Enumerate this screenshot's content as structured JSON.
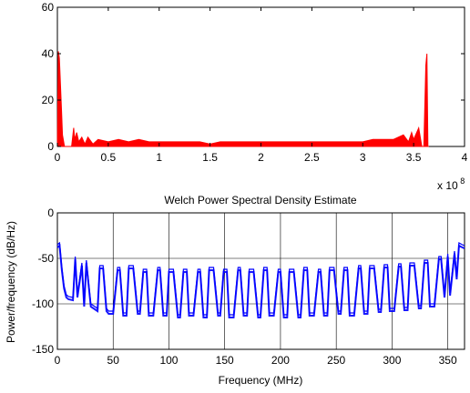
{
  "chart_data": [
    {
      "type": "area",
      "title": "",
      "xlabel": "",
      "ylabel": "",
      "x_multiplier_label": "x 10",
      "x_multiplier_exp": "8",
      "xlim": [
        0,
        4
      ],
      "ylim": [
        0,
        60
      ],
      "xticks": [
        "0",
        "0.5",
        "1",
        "1.5",
        "2",
        "2.5",
        "3",
        "3.5",
        "4"
      ],
      "yticks": [
        "0",
        "20",
        "40",
        "60"
      ],
      "grid": false,
      "color": "#ff0000",
      "series": [
        {
          "x": [
            0,
            0.01,
            0.02,
            0.04,
            0.05,
            0.07,
            0.1,
            0.14,
            0.16,
            0.17,
            0.19,
            0.21,
            0.24,
            0.27,
            0.3,
            0.35,
            0.4,
            0.5,
            0.6,
            0.7,
            0.8,
            0.9,
            1.0,
            1.1,
            1.2,
            1.3,
            1.4,
            1.5,
            1.6,
            1.7,
            1.8,
            1.9,
            2.0,
            2.1,
            2.2,
            2.3,
            2.4,
            2.5,
            2.6,
            2.7,
            2.8,
            2.9,
            3.0,
            3.1,
            3.2,
            3.3,
            3.4,
            3.45,
            3.48,
            3.5,
            3.55,
            3.58,
            3.6,
            3.62,
            3.63,
            3.64,
            3.65
          ],
          "y": [
            0,
            41,
            38,
            16,
            5,
            0,
            0,
            0,
            8,
            3,
            6,
            2,
            4,
            1,
            4,
            1,
            3,
            2,
            3,
            2,
            3,
            2,
            2,
            2,
            2,
            2,
            2,
            1,
            2,
            2,
            2,
            2,
            2,
            2,
            2,
            2,
            2,
            2,
            2,
            2,
            2,
            2,
            2,
            3,
            3,
            3,
            5,
            2,
            6,
            3,
            8,
            0,
            0,
            35,
            40,
            0,
            0
          ]
        }
      ]
    },
    {
      "type": "line",
      "title": "Welch Power Spectral Density Estimate",
      "xlabel": "Frequency (MHz)",
      "ylabel": "Power/frequency (dB/Hz)",
      "xlim": [
        0,
        365
      ],
      "ylim": [
        -150,
        0
      ],
      "xticks": [
        "0",
        "50",
        "100",
        "150",
        "200",
        "250",
        "300",
        "350"
      ],
      "yticks": [
        "0",
        "-50",
        "-100",
        "-150"
      ],
      "grid": true,
      "color": "#0000ff",
      "series": [
        {
          "x": [
            0,
            2,
            4,
            6,
            8,
            10,
            14,
            16,
            18,
            22,
            24,
            26,
            30,
            36,
            38,
            41,
            44,
            46,
            50,
            54,
            56,
            59,
            62,
            64,
            68,
            72,
            74,
            77,
            80,
            82,
            86,
            90,
            92,
            95,
            98,
            100,
            104,
            108,
            110,
            113,
            116,
            118,
            122,
            126,
            128,
            131,
            134,
            136,
            140,
            144,
            146,
            149,
            152,
            154,
            158,
            162,
            164,
            167,
            170,
            172,
            176,
            180,
            182,
            185,
            188,
            190,
            194,
            198,
            200,
            203,
            206,
            208,
            212,
            216,
            218,
            221,
            224,
            226,
            230,
            234,
            236,
            239,
            242,
            244,
            248,
            252,
            254,
            257,
            260,
            262,
            266,
            270,
            272,
            275,
            278,
            280,
            284,
            288,
            290,
            293,
            296,
            298,
            302,
            306,
            308,
            311,
            314,
            316,
            320,
            324,
            326,
            329,
            332,
            334,
            338,
            342,
            344,
            347,
            350,
            352,
            356,
            358,
            360,
            363,
            365
          ],
          "y": [
            -35,
            -33,
            -60,
            -80,
            -90,
            -92,
            -93,
            -48,
            -90,
            -55,
            -100,
            -52,
            -100,
            -105,
            -58,
            -58,
            -105,
            -108,
            -108,
            -60,
            -60,
            -110,
            -110,
            -58,
            -58,
            -108,
            -108,
            -62,
            -62,
            -110,
            -110,
            -60,
            -60,
            -110,
            -110,
            -62,
            -62,
            -112,
            -112,
            -62,
            -62,
            -110,
            -110,
            -62,
            -62,
            -112,
            -112,
            -60,
            -60,
            -110,
            -110,
            -62,
            -62,
            -112,
            -112,
            -60,
            -60,
            -110,
            -110,
            -62,
            -62,
            -112,
            -112,
            -60,
            -60,
            -110,
            -110,
            -62,
            -62,
            -112,
            -112,
            -62,
            -62,
            -112,
            -112,
            -60,
            -60,
            -110,
            -110,
            -62,
            -62,
            -110,
            -110,
            -60,
            -60,
            -108,
            -108,
            -60,
            -60,
            -110,
            -110,
            -58,
            -58,
            -108,
            -108,
            -58,
            -58,
            -106,
            -106,
            -57,
            -57,
            -105,
            -105,
            -56,
            -56,
            -104,
            -104,
            -55,
            -55,
            -102,
            -102,
            -52,
            -52,
            -100,
            -100,
            -48,
            -48,
            -90,
            -45,
            -88,
            -42,
            -70,
            -33,
            -35,
            -36
          ]
        }
      ]
    }
  ]
}
